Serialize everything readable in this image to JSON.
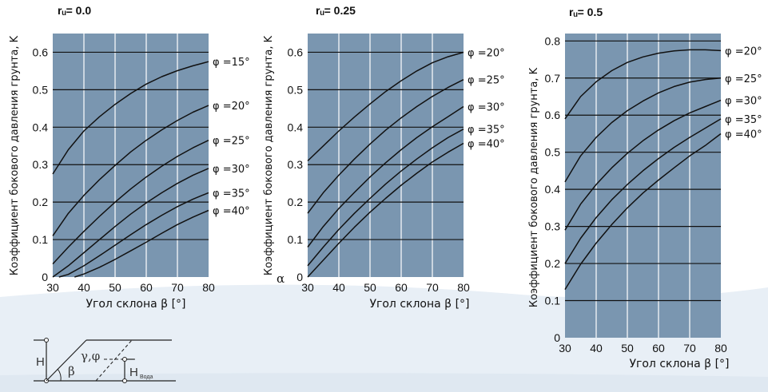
{
  "chart_data": [
    {
      "type": "line",
      "title": "rᵤ= 0.0",
      "xlabel": "Угол склона β [°]",
      "ylabel": "Коэффициент бокового давления грунта, K",
      "xlim": [
        30,
        80
      ],
      "ylim": [
        0,
        0.65
      ],
      "xticks": [
        "30",
        "40",
        "50",
        "60",
        "70",
        "80"
      ],
      "yticks": [
        "0",
        "0.1",
        "0.2",
        "0.3",
        "0.4",
        "0.5",
        "0.6"
      ],
      "hgrid": [
        0.1,
        0.2,
        0.3,
        0.4,
        0.5,
        0.6
      ],
      "vgrid": [
        40,
        50,
        60,
        70
      ],
      "plot_bg": "#7a96b0",
      "line_color": "#111111",
      "series": [
        {
          "name": "φ =15°",
          "x": [
            30,
            35,
            40,
            45,
            50,
            55,
            60,
            65,
            70,
            75,
            80
          ],
          "values": [
            0.275,
            0.34,
            0.39,
            0.428,
            0.461,
            0.49,
            0.515,
            0.535,
            0.551,
            0.564,
            0.575
          ]
        },
        {
          "name": "φ =20°",
          "x": [
            30,
            35,
            40,
            45,
            50,
            55,
            60,
            65,
            70,
            75,
            80
          ],
          "values": [
            0.11,
            0.17,
            0.218,
            0.26,
            0.298,
            0.334,
            0.365,
            0.393,
            0.418,
            0.44,
            0.458
          ]
        },
        {
          "name": "φ =25°",
          "x": [
            30,
            35,
            40,
            45,
            50,
            55,
            60,
            65,
            70,
            75,
            80
          ],
          "values": [
            0.035,
            0.08,
            0.122,
            0.162,
            0.2,
            0.235,
            0.267,
            0.296,
            0.322,
            0.345,
            0.365
          ]
        },
        {
          "name": "φ =30°",
          "x": [
            30,
            35,
            40,
            45,
            50,
            55,
            60,
            65,
            70,
            75,
            80
          ],
          "values": [
            0,
            0.03,
            0.065,
            0.1,
            0.135,
            0.168,
            0.198,
            0.225,
            0.25,
            0.272,
            0.29
          ]
        },
        {
          "name": "φ =35°",
          "x": [
            32,
            35,
            40,
            45,
            50,
            55,
            60,
            65,
            70,
            75,
            80
          ],
          "values": [
            0,
            0.007,
            0.03,
            0.057,
            0.085,
            0.113,
            0.14,
            0.165,
            0.188,
            0.208,
            0.225
          ]
        },
        {
          "name": "φ =40°",
          "x": [
            37,
            40,
            45,
            50,
            55,
            60,
            65,
            70,
            75,
            80
          ],
          "values": [
            0,
            0.008,
            0.026,
            0.047,
            0.07,
            0.093,
            0.117,
            0.14,
            0.16,
            0.178
          ]
        }
      ]
    },
    {
      "type": "line",
      "title": "rᵤ= 0.25",
      "xlabel": "Угол склона β [°]",
      "ylabel": "Коэффициент бокового давления грунта, K",
      "xlim": [
        30,
        80
      ],
      "ylim": [
        0,
        0.65
      ],
      "xticks": [
        "30",
        "40",
        "50",
        "60",
        "70",
        "80"
      ],
      "yticks": [
        "0",
        "0.1",
        "0.2",
        "0.3",
        "0.4",
        "0.5",
        "0.6"
      ],
      "hgrid": [
        0.1,
        0.2,
        0.3,
        0.4,
        0.5,
        0.6
      ],
      "vgrid": [
        40,
        50,
        60,
        70
      ],
      "plot_bg": "#7a96b0",
      "line_color": "#111111",
      "extra_label": "α",
      "series": [
        {
          "name": "φ =20°",
          "x": [
            30,
            35,
            40,
            45,
            50,
            55,
            60,
            65,
            70,
            75,
            80
          ],
          "values": [
            0.31,
            0.35,
            0.39,
            0.427,
            0.462,
            0.495,
            0.524,
            0.55,
            0.572,
            0.588,
            0.6
          ]
        },
        {
          "name": "φ =25°",
          "x": [
            30,
            35,
            40,
            45,
            50,
            55,
            60,
            65,
            70,
            75,
            80
          ],
          "values": [
            0.17,
            0.225,
            0.272,
            0.315,
            0.355,
            0.392,
            0.425,
            0.455,
            0.482,
            0.506,
            0.527
          ]
        },
        {
          "name": "φ =30°",
          "x": [
            30,
            35,
            40,
            45,
            50,
            55,
            60,
            65,
            70,
            75,
            80
          ],
          "values": [
            0.08,
            0.135,
            0.183,
            0.226,
            0.267,
            0.305,
            0.34,
            0.372,
            0.401,
            0.428,
            0.455
          ]
        },
        {
          "name": "φ =35°",
          "x": [
            30,
            35,
            40,
            45,
            50,
            55,
            60,
            65,
            70,
            75,
            80
          ],
          "values": [
            0.03,
            0.08,
            0.127,
            0.17,
            0.21,
            0.248,
            0.283,
            0.315,
            0.345,
            0.372,
            0.395
          ]
        },
        {
          "name": "φ =40°",
          "x": [
            30,
            35,
            40,
            45,
            50,
            55,
            60,
            65,
            70,
            75,
            80
          ],
          "values": [
            0.0,
            0.045,
            0.09,
            0.133,
            0.173,
            0.21,
            0.245,
            0.277,
            0.307,
            0.333,
            0.357
          ]
        }
      ]
    },
    {
      "type": "line",
      "title": "rᵤ= 0.5",
      "xlabel": "Угол склона β [°]",
      "ylabel": "Коэффициент бокового давления грунта, K",
      "xlim": [
        30,
        80
      ],
      "ylim": [
        0,
        0.82
      ],
      "xticks": [
        "30",
        "40",
        "50",
        "60",
        "70",
        "80"
      ],
      "yticks": [
        "0",
        "0.1",
        "0.2",
        "0.3",
        "0.4",
        "0.5",
        "0.6",
        "0.7",
        "0.8"
      ],
      "hgrid": [
        0.1,
        0.2,
        0.3,
        0.4,
        0.5,
        0.6,
        0.7,
        0.8
      ],
      "vgrid": [
        40,
        50,
        60,
        70
      ],
      "plot_bg": "#7a96b0",
      "line_color": "#111111",
      "series": [
        {
          "name": "φ =20°",
          "x": [
            30,
            35,
            40,
            45,
            50,
            55,
            60,
            65,
            70,
            75,
            80
          ],
          "values": [
            0.59,
            0.65,
            0.69,
            0.72,
            0.742,
            0.757,
            0.767,
            0.773,
            0.776,
            0.776,
            0.774
          ]
        },
        {
          "name": "φ =25°",
          "x": [
            30,
            35,
            40,
            45,
            50,
            55,
            60,
            65,
            70,
            75,
            80
          ],
          "values": [
            0.42,
            0.49,
            0.54,
            0.58,
            0.612,
            0.638,
            0.66,
            0.677,
            0.689,
            0.696,
            0.7
          ]
        },
        {
          "name": "φ =30°",
          "x": [
            30,
            35,
            40,
            45,
            50,
            55,
            60,
            65,
            70,
            75,
            80
          ],
          "values": [
            0.29,
            0.36,
            0.413,
            0.458,
            0.497,
            0.531,
            0.56,
            0.585,
            0.606,
            0.623,
            0.64
          ]
        },
        {
          "name": "φ =35°",
          "x": [
            30,
            35,
            40,
            45,
            50,
            55,
            60,
            65,
            70,
            75,
            80
          ],
          "values": [
            0.2,
            0.268,
            0.324,
            0.372,
            0.413,
            0.45,
            0.483,
            0.513,
            0.54,
            0.565,
            0.59
          ]
        },
        {
          "name": "φ =40°",
          "x": [
            30,
            35,
            40,
            45,
            50,
            55,
            60,
            65,
            70,
            75,
            80
          ],
          "values": [
            0.13,
            0.198,
            0.255,
            0.305,
            0.35,
            0.39,
            0.425,
            0.458,
            0.49,
            0.518,
            0.55
          ]
        }
      ]
    }
  ],
  "diagram": {
    "H": "H",
    "beta": "β",
    "gamma_phi": "γ,φ",
    "H_water": "H",
    "water_sub": "Вода"
  },
  "colors": {
    "wave": "#e6eef5",
    "plot_bg": "#7a96b0",
    "grid_h": "#111111",
    "grid_v": "#ffffff"
  }
}
